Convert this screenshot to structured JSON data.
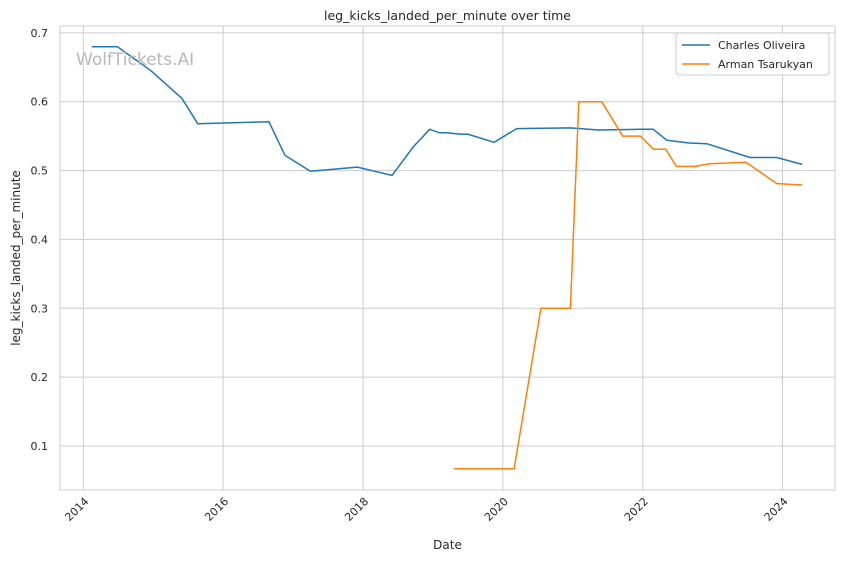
{
  "chart_data": {
    "type": "line",
    "title": "leg_kicks_landed_per_minute over time",
    "xlabel": "Date",
    "ylabel": "leg_kicks_landed_per_minute",
    "watermark": "WolfTickets.AI",
    "x_ticks": [
      "2014",
      "2016",
      "2018",
      "2020",
      "2022",
      "2024"
    ],
    "y_ticks": [
      "0.1",
      "0.2",
      "0.3",
      "0.4",
      "0.5",
      "0.6",
      "0.7"
    ],
    "xlim": [
      "2013-09-01",
      "2024-10-01"
    ],
    "ylim": [
      0.036,
      0.71
    ],
    "grid": true,
    "legend_position": "top-right",
    "series": [
      {
        "name": "Charles Oliveira",
        "color": "#1f77b4",
        "points": [
          [
            "2014-02-15",
            0.68
          ],
          [
            "2014-06-28",
            0.68
          ],
          [
            "2014-12-20",
            0.645
          ],
          [
            "2015-05-30",
            0.605
          ],
          [
            "2015-08-22",
            0.568
          ],
          [
            "2016-08-27",
            0.571
          ],
          [
            "2016-11-19",
            0.522
          ],
          [
            "2017-04-01",
            0.499
          ],
          [
            "2017-12-02",
            0.505
          ],
          [
            "2018-06-01",
            0.493
          ],
          [
            "2018-09-22",
            0.535
          ],
          [
            "2018-12-15",
            0.56
          ],
          [
            "2019-02-02",
            0.555
          ],
          [
            "2019-03-16",
            0.555
          ],
          [
            "2019-05-18",
            0.553
          ],
          [
            "2019-07-01",
            0.553
          ],
          [
            "2019-11-16",
            0.541
          ],
          [
            "2020-03-14",
            0.561
          ],
          [
            "2020-12-19",
            0.562
          ],
          [
            "2021-05-15",
            0.559
          ],
          [
            "2021-12-11",
            0.56
          ],
          [
            "2022-02-25",
            0.56
          ],
          [
            "2022-05-07",
            0.544
          ],
          [
            "2022-09-01",
            0.54
          ],
          [
            "2022-12-01",
            0.539
          ],
          [
            "2023-07-15",
            0.519
          ],
          [
            "2023-12-01",
            0.519
          ],
          [
            "2024-04-13",
            0.509
          ]
        ]
      },
      {
        "name": "Arman Tsarukyan",
        "color": "#ff7f0e",
        "points": [
          [
            "2019-04-20",
            0.067
          ],
          [
            "2020-02-29",
            0.067
          ],
          [
            "2020-07-18",
            0.3
          ],
          [
            "2020-12-19",
            0.3
          ],
          [
            "2021-02-01",
            0.6
          ],
          [
            "2021-06-01",
            0.6
          ],
          [
            "2021-09-18",
            0.55
          ],
          [
            "2021-12-20",
            0.55
          ],
          [
            "2022-02-26",
            0.531
          ],
          [
            "2022-05-01",
            0.531
          ],
          [
            "2022-06-25",
            0.506
          ],
          [
            "2022-10-01",
            0.506
          ],
          [
            "2022-12-17",
            0.51
          ],
          [
            "2023-06-24",
            0.512
          ],
          [
            "2023-12-02",
            0.481
          ],
          [
            "2024-04-13",
            0.479
          ]
        ]
      }
    ]
  }
}
